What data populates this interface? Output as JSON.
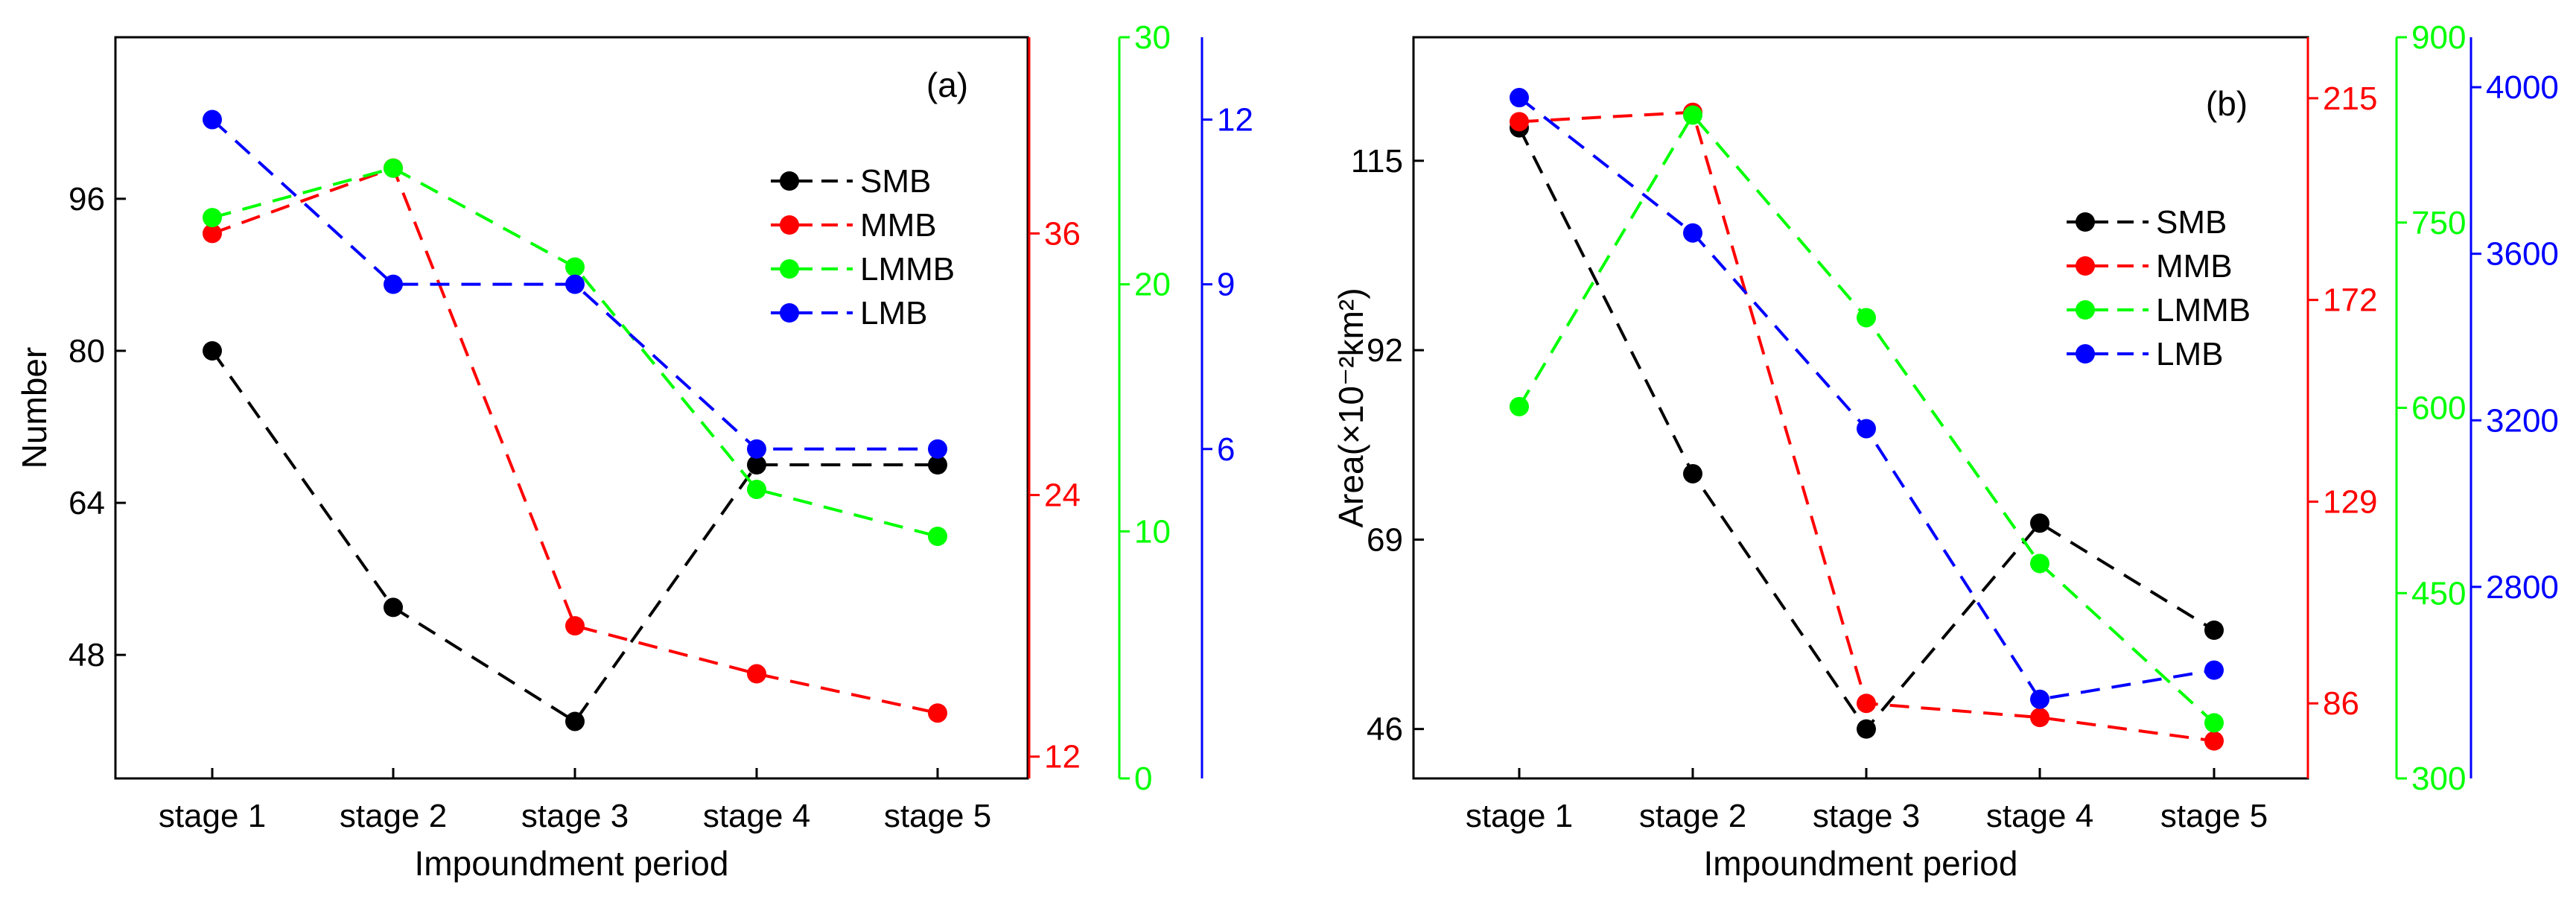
{
  "chart_data": [
    {
      "type": "line",
      "panel_label": "(a)",
      "xlabel": "Impoundment period",
      "ylabel": "Number",
      "categories": [
        "stage 1",
        "stage 2",
        "stage 3",
        "stage 4",
        "stage 5"
      ],
      "axes": [
        {
          "id": "left",
          "color": "#000000",
          "range": [
            35,
            113
          ],
          "ticks": [
            48,
            64,
            80,
            96
          ],
          "tick_labels": [
            "48",
            "64",
            "80",
            "96"
          ]
        },
        {
          "id": "red",
          "color": "#ff0000",
          "range": [
            11,
            45
          ],
          "ticks": [
            12,
            24,
            36
          ],
          "tick_labels": [
            "12",
            "24",
            "36"
          ]
        },
        {
          "id": "green",
          "color": "#00ff00",
          "range": [
            0,
            30
          ],
          "ticks": [
            0,
            10,
            20,
            30
          ],
          "tick_labels": [
            "0",
            "10",
            "20",
            "30"
          ]
        },
        {
          "id": "blue",
          "color": "#0000ff",
          "range": [
            0,
            13.5
          ],
          "ticks": [
            6,
            9,
            12
          ],
          "tick_labels": [
            "6",
            "9",
            "12"
          ]
        }
      ],
      "series": [
        {
          "name": "SMB",
          "color": "#000000",
          "axis": "left",
          "values": [
            80,
            53,
            41,
            68,
            68
          ]
        },
        {
          "name": "MMB",
          "color": "#ff0000",
          "axis": "red",
          "values": [
            36,
            39,
            18,
            15.8,
            14
          ]
        },
        {
          "name": "LMMB",
          "color": "#00ff00",
          "axis": "green",
          "values": [
            22.7,
            24.7,
            20.7,
            11.7,
            9.8
          ]
        },
        {
          "name": "LMB",
          "color": "#0000ff",
          "axis": "blue",
          "values": [
            12,
            9,
            9,
            6,
            6
          ]
        }
      ],
      "legend_position": "right-center"
    },
    {
      "type": "line",
      "panel_label": "(b)",
      "xlabel": "Impoundment period",
      "ylabel": "Area(×10⁻²km²)",
      "categories": [
        "stage 1",
        "stage 2",
        "stage 3",
        "stage 4",
        "stage 5"
      ],
      "axes": [
        {
          "id": "left",
          "color": "#000000",
          "range": [
            40,
            130
          ],
          "ticks": [
            46,
            69,
            92,
            115
          ],
          "tick_labels": [
            "46",
            "69",
            "92",
            "115"
          ]
        },
        {
          "id": "red",
          "color": "#ff0000",
          "range": [
            70,
            228
          ],
          "ticks": [
            86,
            129,
            172,
            215
          ],
          "tick_labels": [
            "86",
            "129",
            "172",
            "215"
          ]
        },
        {
          "id": "green",
          "color": "#00ff00",
          "range": [
            300,
            900
          ],
          "ticks": [
            300,
            450,
            600,
            750,
            900
          ],
          "tick_labels": [
            "300",
            "450",
            "600",
            "750",
            "900"
          ]
        },
        {
          "id": "blue",
          "color": "#0000ff",
          "range": [
            2340,
            4120
          ],
          "ticks": [
            2800,
            3200,
            3600,
            4000
          ],
          "tick_labels": [
            "2800",
            "3200",
            "3600",
            "4000"
          ]
        }
      ],
      "series": [
        {
          "name": "SMB",
          "color": "#000000",
          "axis": "left",
          "values": [
            119,
            77,
            46,
            71,
            58
          ]
        },
        {
          "name": "MMB",
          "color": "#ff0000",
          "axis": "red",
          "values": [
            210,
            212,
            86,
            83,
            78
          ]
        },
        {
          "name": "LMMB",
          "color": "#00ff00",
          "axis": "green",
          "values": [
            601,
            837,
            673,
            474,
            345
          ]
        },
        {
          "name": "LMB",
          "color": "#0000ff",
          "axis": "blue",
          "values": [
            3975,
            3650,
            3180,
            2530,
            2600
          ]
        }
      ],
      "legend_position": "right-center"
    }
  ]
}
